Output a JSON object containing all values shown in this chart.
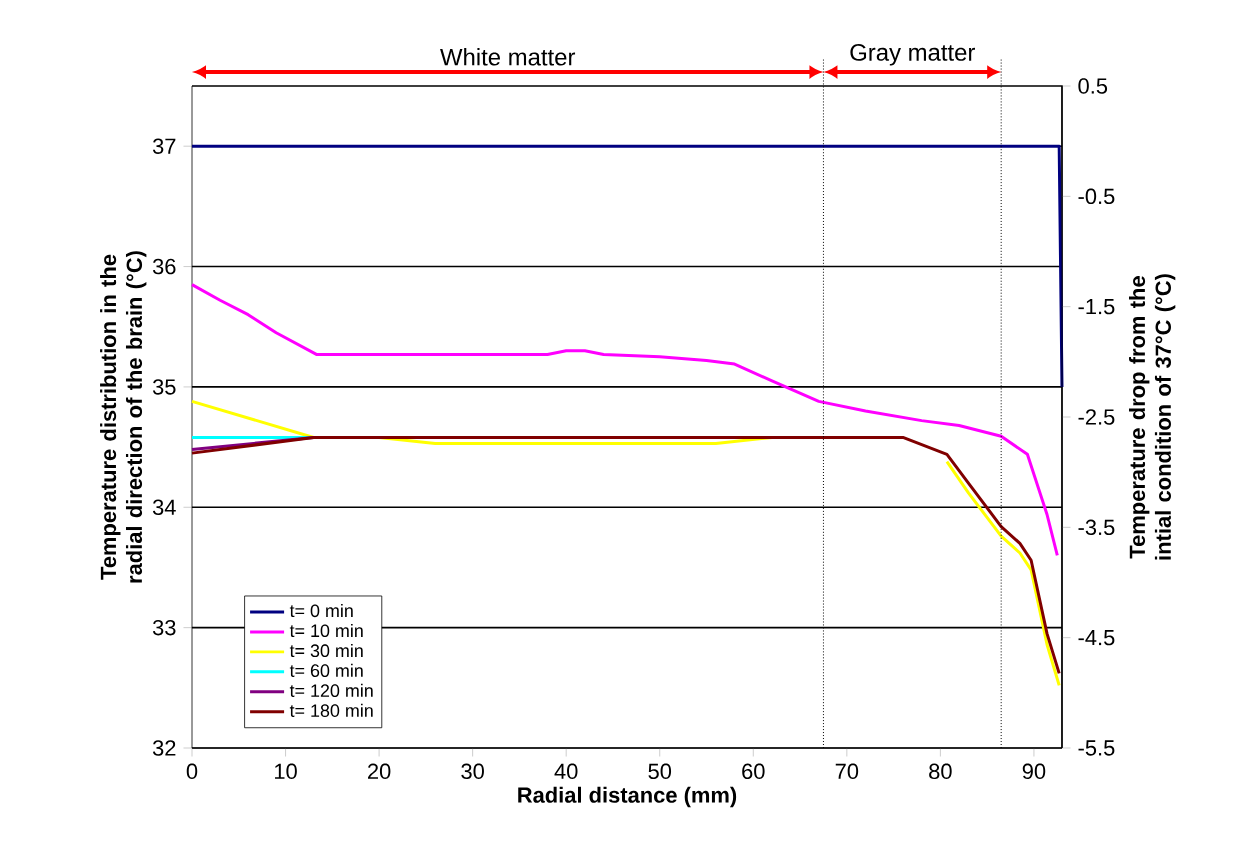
{
  "chart_data": {
    "type": "line",
    "xlabel": "Radial distance (mm)",
    "ylabel": "Temperature distribution in the radial direction of the brain (°C)",
    "y2label": "Temperature drop from the intial condition of 37°C (°C)",
    "xlim": [
      0,
      93
    ],
    "xticks": [
      0,
      10,
      20,
      30,
      40,
      50,
      60,
      70,
      80,
      90
    ],
    "ylim": [
      32,
      37.5
    ],
    "yticks": [
      32,
      33,
      34,
      35,
      36,
      37
    ],
    "y2lim": [
      -5.5,
      0.5
    ],
    "y2ticks": [
      -5.5,
      -4.5,
      -3.5,
      -2.5,
      -1.5,
      -0.5,
      0.5
    ],
    "grid": "y",
    "legend": "bottom left",
    "line_style": "solid",
    "ref_lines": [
      {
        "axis": "x",
        "value": 67.5,
        "line_style": "dotted",
        "color": "#000000"
      },
      {
        "axis": "x",
        "value": 86.5,
        "line_style": "dotted",
        "color": "#000000"
      }
    ],
    "annotations": [
      "White matter",
      "Gray matter"
    ],
    "series": [
      {
        "name": "t= 0 min",
        "color": "#000080",
        "x": [
          0,
          92.7,
          93
        ],
        "values": [
          37,
          37,
          35.0
        ]
      },
      {
        "name": "t= 10 min",
        "color": "#ff00ff",
        "x": [
          0,
          3,
          6,
          9,
          13.3,
          20,
          30,
          38,
          40,
          42,
          44,
          50,
          55,
          58,
          62,
          67,
          72,
          78,
          82,
          86.5,
          89.3,
          91.4,
          92.5
        ],
        "values": [
          35.85,
          35.72,
          35.6,
          35.45,
          35.27,
          35.27,
          35.27,
          35.27,
          35.3,
          35.3,
          35.27,
          35.25,
          35.22,
          35.19,
          35.05,
          34.88,
          34.8,
          34.72,
          34.68,
          34.59,
          34.44,
          33.94,
          33.6
        ]
      },
      {
        "name": "t= 30 min",
        "color": "#ffff00",
        "x": [
          0,
          13,
          20,
          26,
          56,
          62,
          76,
          80.7,
          83,
          86.5,
          88.5,
          89.7,
          91.4,
          92.7
        ],
        "values": [
          34.88,
          34.58,
          34.58,
          34.53,
          34.53,
          34.58,
          null,
          34.38,
          34.12,
          33.76,
          33.62,
          33.48,
          32.86,
          32.52
        ]
      },
      {
        "name": "t= 60 min",
        "color": "#00ffff",
        "x": [
          0,
          13
        ],
        "values": [
          34.58,
          34.58
        ]
      },
      {
        "name": "t= 120 min",
        "color": "#800080",
        "x": [
          0,
          13
        ],
        "values": [
          34.48,
          34.58
        ]
      },
      {
        "name": "t= 180 min",
        "color": "#800000",
        "x": [
          0,
          13,
          76,
          80.7,
          83,
          86.5,
          88.5,
          89.7,
          91.4,
          92.7
        ],
        "values": [
          34.45,
          34.58,
          34.58,
          34.44,
          34.2,
          33.84,
          33.7,
          33.56,
          32.95,
          32.62
        ]
      }
    ]
  }
}
